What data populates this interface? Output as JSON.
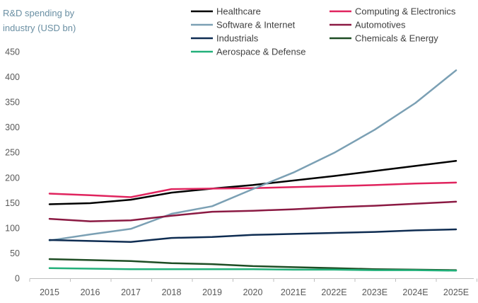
{
  "chart_data": {
    "type": "line",
    "title": "",
    "ylabel_lines": [
      "R&D spending by",
      "industry (USD bn)"
    ],
    "xlabel": "",
    "categories": [
      "2015",
      "2016",
      "2017",
      "2018",
      "2019",
      "2020",
      "2021E",
      "2022E",
      "2023E",
      "2024E",
      "2025E"
    ],
    "ylim": [
      0,
      450
    ],
    "yticks": [
      0,
      50,
      100,
      150,
      200,
      250,
      300,
      350,
      400,
      450
    ],
    "grid": false,
    "legend_position": "top",
    "series": [
      {
        "name": "Healthcare",
        "color": "#000000",
        "values": [
          147,
          149,
          156,
          170,
          178,
          185,
          194,
          203,
          213,
          223,
          233
        ]
      },
      {
        "name": "Computing & Electronics",
        "color": "#e0245e",
        "values": [
          168,
          165,
          161,
          177,
          178,
          179,
          181,
          183,
          185,
          188,
          190
        ]
      },
      {
        "name": "Software & Internet",
        "color": "#7ba0b4",
        "values": [
          75,
          87,
          98,
          128,
          143,
          177,
          210,
          249,
          295,
          348,
          413
        ]
      },
      {
        "name": "Automotives",
        "color": "#8b1a43",
        "values": [
          118,
          113,
          115,
          124,
          132,
          134,
          137,
          141,
          144,
          148,
          152
        ]
      },
      {
        "name": "Industrials",
        "color": "#0f2d52",
        "values": [
          76,
          74,
          72,
          80,
          82,
          86,
          88,
          90,
          92,
          95,
          97
        ]
      },
      {
        "name": "Chemicals & Energy",
        "color": "#1e4d24",
        "values": [
          38,
          36,
          34,
          30,
          28,
          24,
          22,
          20,
          18,
          17,
          16
        ]
      },
      {
        "name": "Aerospace & Defense",
        "color": "#22b07a",
        "values": [
          20,
          19,
          18,
          18,
          18,
          18,
          17,
          17,
          16,
          16,
          15
        ]
      }
    ]
  }
}
